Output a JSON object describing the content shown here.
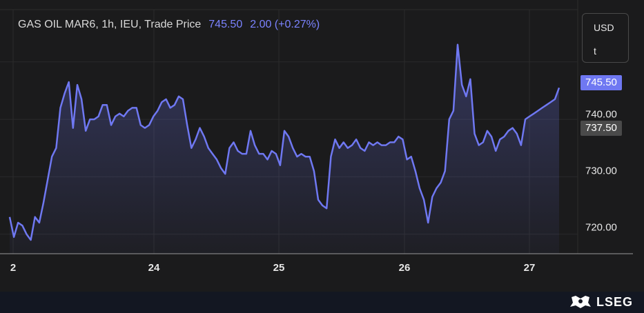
{
  "header": {
    "instrument": "GAS OIL MAR6, 1h, IEU, Trade Price",
    "last_price": "745.50",
    "change": "2.00 (+0.27%)"
  },
  "axis": {
    "currency": "USD",
    "unit": "t",
    "last_badge": "745.50",
    "prev_badge": "737.50"
  },
  "brand": {
    "name": "LSEG"
  },
  "colors": {
    "line": "#6f78f2",
    "last_badge": "#6f78f2",
    "prev_badge": "#4a4a4a",
    "background": "#1b1b1c"
  },
  "chart_data": {
    "type": "area",
    "series": [
      {
        "values": [
          723.0,
          719.5,
          722.0,
          721.5,
          720.0,
          719.0,
          723.0,
          722.0,
          725.5,
          729.5,
          733.5,
          735.0,
          742.0,
          744.5,
          746.5,
          738.5,
          746.0,
          743.5,
          738.0,
          740.0,
          740.0,
          740.5,
          742.5,
          742.5,
          739.0,
          740.5,
          741.0,
          740.5,
          741.5,
          742.0,
          742.0,
          739.0,
          738.5,
          739.0,
          740.5,
          741.5,
          743.0,
          743.5,
          742.0,
          742.5,
          744.0,
          743.5,
          739.0,
          735.0,
          736.5,
          738.5,
          737.0,
          735.0,
          734.0,
          733.0,
          731.5,
          730.5,
          735.0,
          736.0,
          734.5,
          734.0,
          734.0,
          738.0,
          735.5,
          734.0,
          734.0,
          733.0,
          734.5,
          734.0,
          732.0,
          738.0,
          737.0,
          735.0,
          733.5,
          734.0,
          733.5,
          733.5,
          731.0,
          726.0,
          725.0,
          724.5,
          733.5,
          736.5,
          735.0,
          736.0,
          735.0,
          735.5,
          736.5,
          735.0,
          734.5,
          736.0,
          735.5,
          736.0,
          735.5,
          735.5,
          736.0,
          736.0,
          737.0,
          736.5,
          733.0,
          733.5,
          731.0,
          728.0,
          726.0,
          722.0,
          726.5,
          728.0,
          729.0,
          731.0,
          740.0,
          741.5,
          753.0,
          746.0,
          744.0,
          747.0,
          737.5,
          735.5,
          736.0,
          738.0,
          737.0,
          734.5,
          736.5,
          737.0,
          738.0,
          738.5,
          737.5,
          735.5,
          740.0,
          740.5,
          741.0,
          741.5,
          742.0,
          742.5,
          743.0,
          743.5,
          745.5
        ]
      }
    ],
    "x_ticks": [
      "2",
      "24",
      "25",
      "26",
      "27"
    ],
    "y_ticks": [
      "720.00",
      "730.00",
      "740.00"
    ],
    "ylim": [
      716.6,
      759.1
    ],
    "last_price": 745.5,
    "prev_close": 737.5,
    "grid": true
  }
}
